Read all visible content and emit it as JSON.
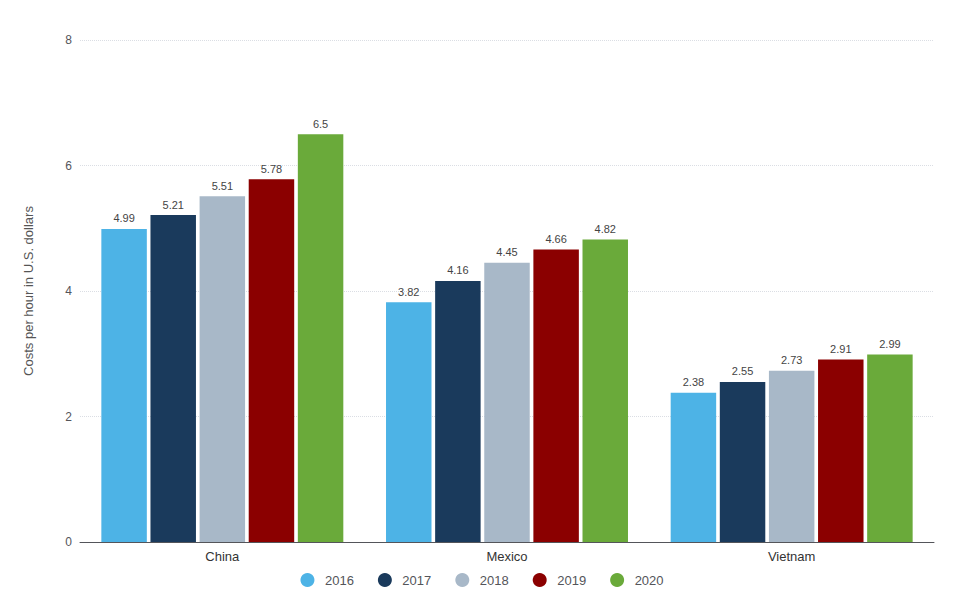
{
  "chart_data": {
    "type": "bar",
    "categories": [
      "China",
      "Mexico",
      "Vietnam"
    ],
    "series": [
      {
        "name": "2016",
        "color": "#4db3e6",
        "values": [
          4.99,
          3.82,
          2.38
        ]
      },
      {
        "name": "2017",
        "color": "#1a3a5c",
        "values": [
          5.21,
          4.16,
          2.55
        ]
      },
      {
        "name": "2018",
        "color": "#a8b8c8",
        "values": [
          5.51,
          4.45,
          2.73
        ]
      },
      {
        "name": "2019",
        "color": "#8b0000",
        "values": [
          5.78,
          4.66,
          2.91
        ]
      },
      {
        "name": "2020",
        "color": "#6aaa3a",
        "values": [
          6.5,
          4.82,
          2.99
        ]
      }
    ],
    "ylabel": "Costs per hour in U.S. dollars",
    "ylim": [
      0,
      8
    ],
    "yticks": [
      0,
      2,
      4,
      6,
      8
    ],
    "grid": true,
    "legend": "bottom",
    "data_labels": true
  }
}
